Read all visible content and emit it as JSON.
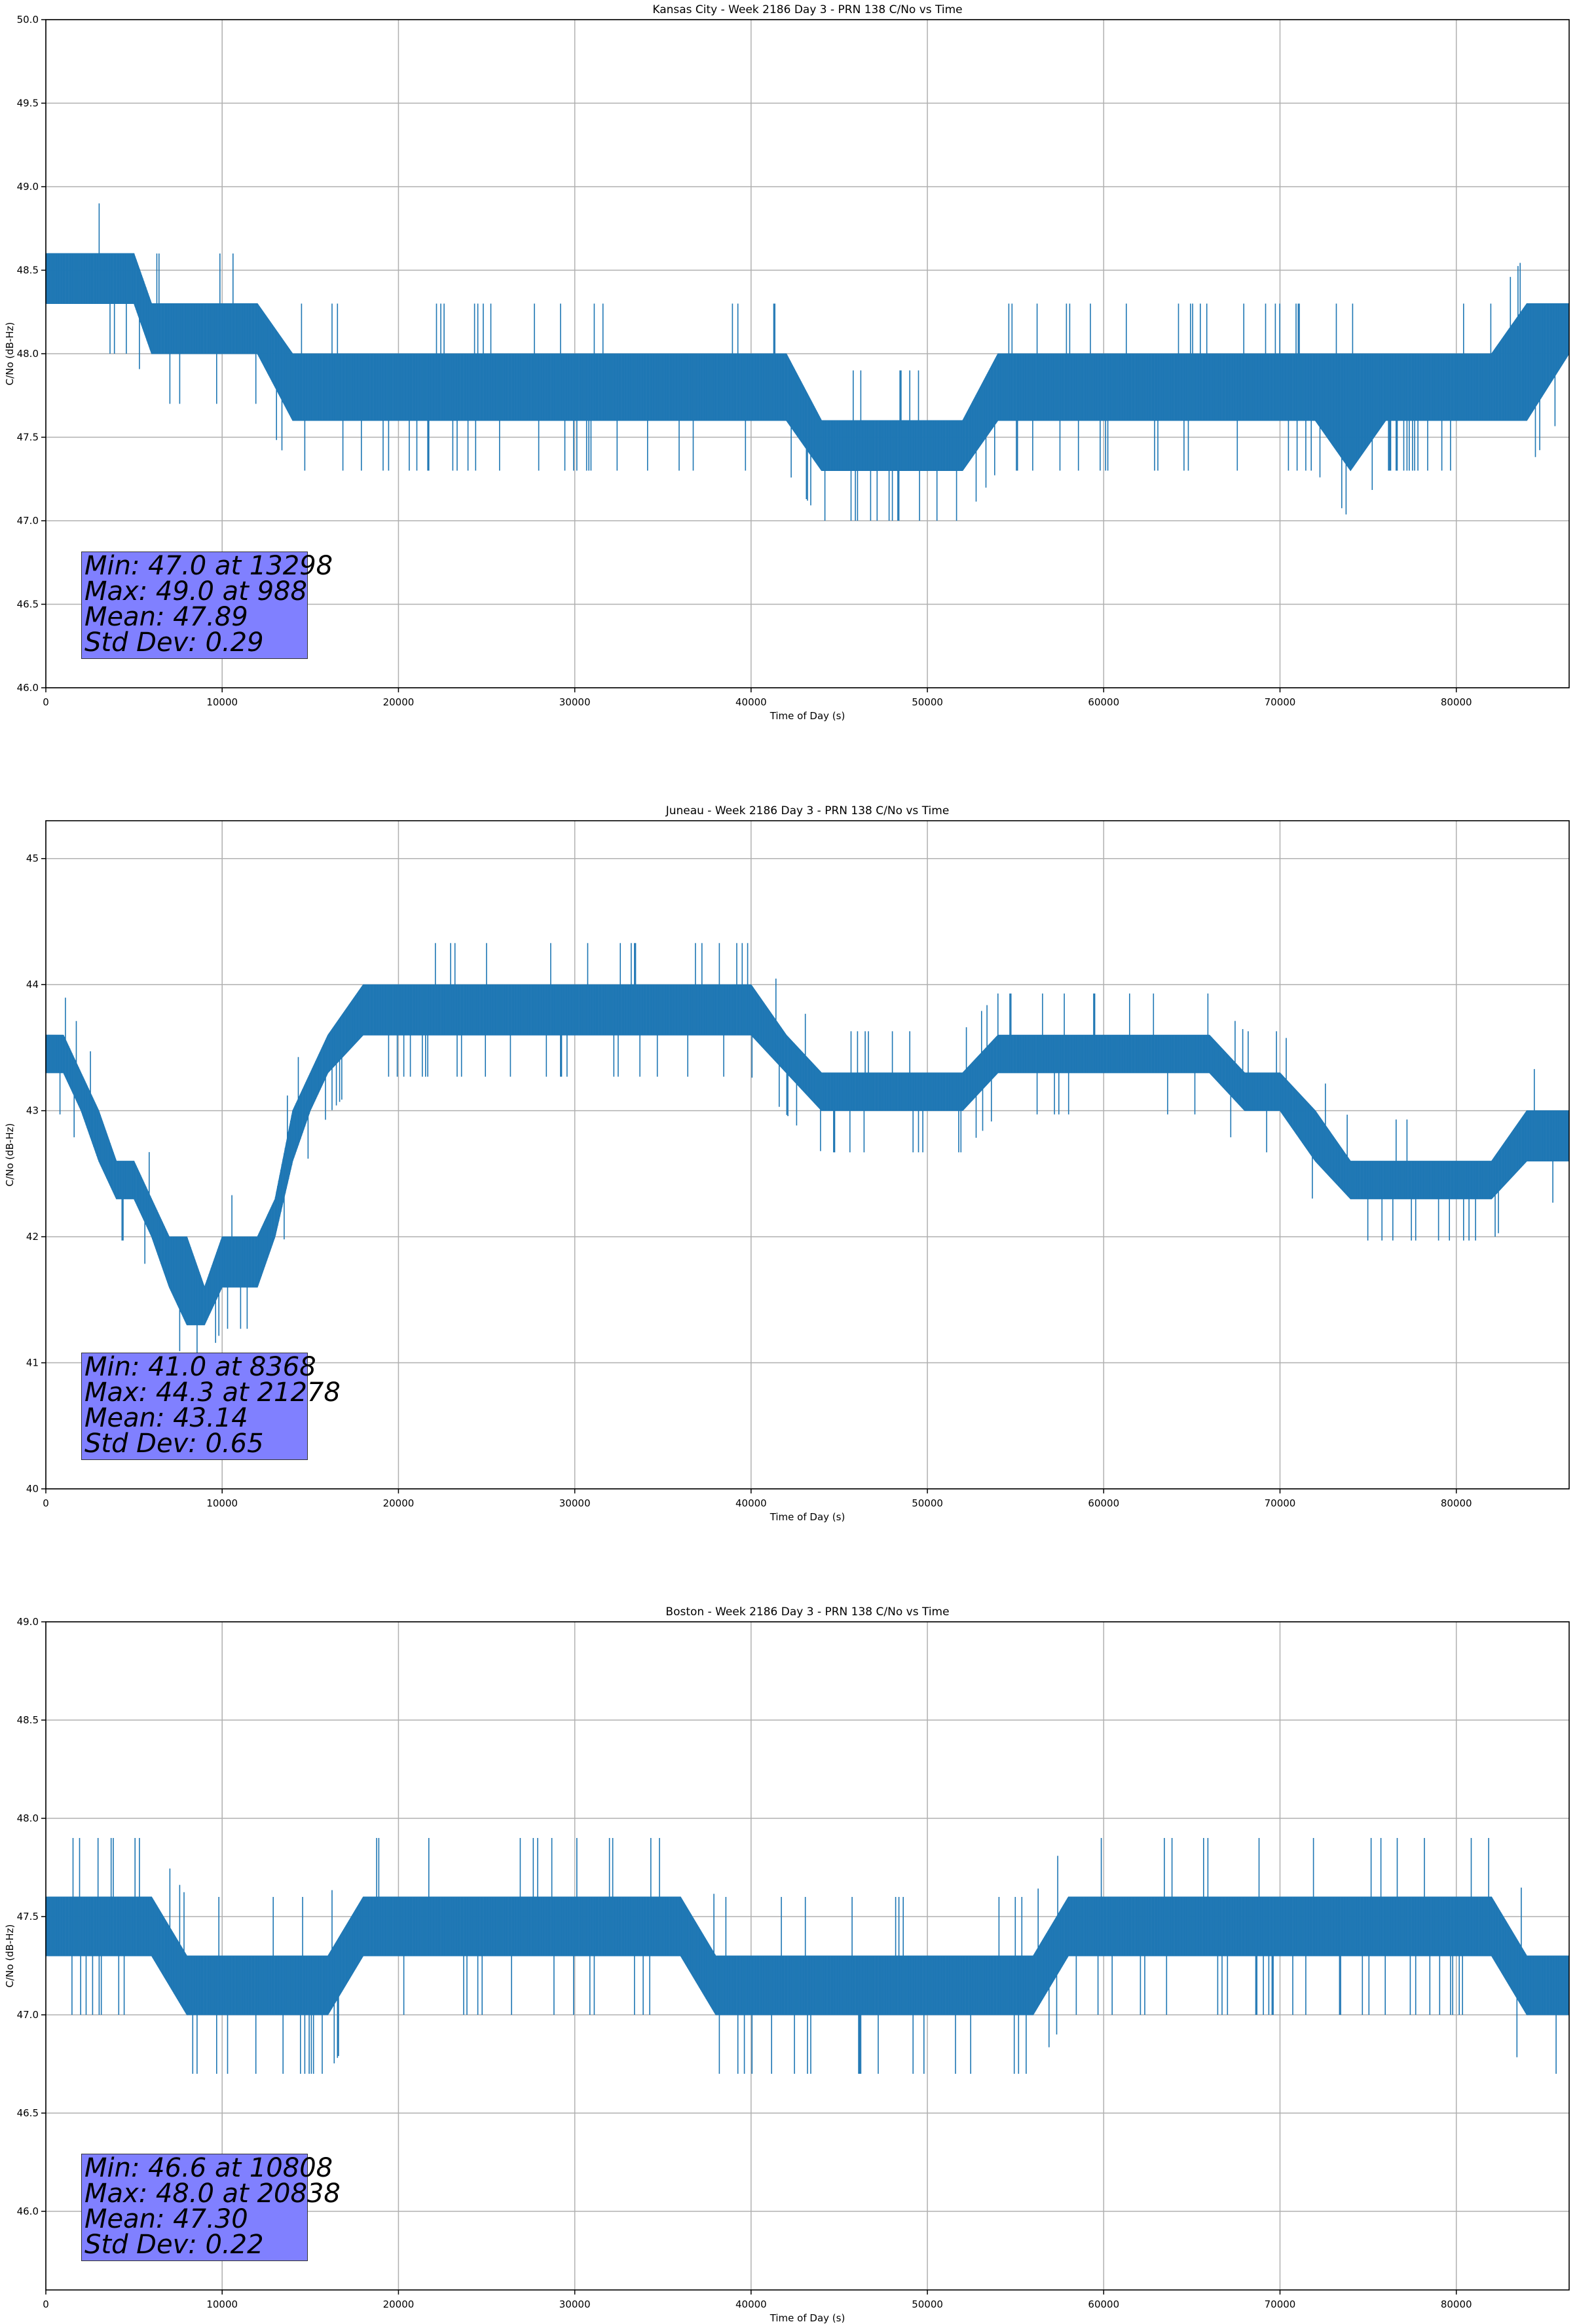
{
  "colors": {
    "line": "#1f77b4",
    "stats_box": "#8080ff",
    "grid": "#b0b0b0",
    "axis": "#000000"
  },
  "chart_data": [
    {
      "type": "line",
      "title": "Kansas City - Week 2186 Day 3 - PRN 138 C/No vs Time",
      "xlabel": "Time of Day (s)",
      "ylabel": "C/No (dB-Hz)",
      "xlim": [
        0,
        86400
      ],
      "ylim": [
        46.0,
        50.0
      ],
      "xticks": [
        0,
        10000,
        20000,
        30000,
        40000,
        50000,
        60000,
        70000,
        80000
      ],
      "yticks": [
        "46.0",
        "46.5",
        "47.0",
        "47.5",
        "48.0",
        "48.5",
        "49.0",
        "49.5",
        "50.0"
      ],
      "grid": true,
      "series": [
        {
          "x": [
            0,
            1000,
            2000,
            3000,
            4000,
            5000,
            6000,
            7000,
            8000,
            10000,
            12000,
            14000,
            16000,
            18000,
            20000,
            22000,
            24000,
            26000,
            28000,
            30000,
            32000,
            34000,
            36000,
            38000,
            40000,
            42000,
            44000,
            46000,
            48000,
            50000,
            52000,
            54000,
            56000,
            58000,
            60000,
            62000,
            64000,
            66000,
            68000,
            70000,
            72000,
            74000,
            76000,
            78000,
            80000,
            82000,
            84000,
            86400
          ],
          "y_low": [
            48.3,
            48.3,
            48.3,
            48.3,
            48.3,
            48.3,
            48.0,
            48.0,
            48.0,
            48.0,
            48.0,
            47.6,
            47.6,
            47.6,
            47.6,
            47.6,
            47.6,
            47.6,
            47.6,
            47.6,
            47.6,
            47.6,
            47.6,
            47.6,
            47.6,
            47.6,
            47.3,
            47.3,
            47.3,
            47.3,
            47.3,
            47.6,
            47.6,
            47.6,
            47.6,
            47.6,
            47.6,
            47.6,
            47.6,
            47.6,
            47.6,
            47.3,
            47.6,
            47.6,
            47.6,
            47.6,
            47.6,
            48.0
          ],
          "y_high": [
            48.6,
            48.6,
            48.6,
            48.6,
            48.6,
            48.6,
            48.3,
            48.3,
            48.3,
            48.3,
            48.3,
            48.0,
            48.0,
            48.0,
            48.0,
            48.0,
            48.0,
            48.0,
            48.0,
            48.0,
            48.0,
            48.0,
            48.0,
            48.0,
            48.0,
            48.0,
            47.6,
            47.6,
            47.6,
            47.6,
            47.6,
            48.0,
            48.0,
            48.0,
            48.0,
            48.0,
            48.0,
            48.0,
            48.0,
            48.0,
            48.0,
            48.0,
            48.0,
            48.0,
            48.0,
            48.0,
            48.3,
            48.3
          ]
        }
      ],
      "stats_lines": [
        "Min: 47.0 at 13298",
        "Max: 49.0 at 988",
        "Mean: 47.89",
        "Std Dev: 0.29"
      ]
    },
    {
      "type": "line",
      "title": "Juneau - Week 2186 Day 3 - PRN 138 C/No vs Time",
      "xlabel": "Time of Day (s)",
      "ylabel": "C/No (dB-Hz)",
      "xlim": [
        0,
        86400
      ],
      "ylim": [
        40.0,
        45.3
      ],
      "xticks": [
        0,
        10000,
        20000,
        30000,
        40000,
        50000,
        60000,
        70000,
        80000
      ],
      "yticks": [
        "40",
        "41",
        "42",
        "43",
        "44",
        "45"
      ],
      "grid": true,
      "series": [
        {
          "x": [
            0,
            1000,
            2000,
            3000,
            4000,
            5000,
            6000,
            7000,
            8000,
            9000,
            10000,
            11000,
            12000,
            13000,
            14000,
            15000,
            16000,
            18000,
            20000,
            22000,
            24000,
            26000,
            28000,
            30000,
            32000,
            34000,
            36000,
            38000,
            40000,
            42000,
            44000,
            46000,
            48000,
            50000,
            52000,
            54000,
            56000,
            58000,
            60000,
            62000,
            64000,
            66000,
            68000,
            70000,
            72000,
            74000,
            76000,
            78000,
            80000,
            82000,
            84000,
            86400
          ],
          "y_low": [
            43.3,
            43.3,
            43.0,
            42.6,
            42.3,
            42.3,
            42.0,
            41.6,
            41.3,
            41.3,
            41.6,
            41.6,
            41.6,
            42.0,
            42.6,
            43.0,
            43.3,
            43.6,
            43.6,
            43.6,
            43.6,
            43.6,
            43.6,
            43.6,
            43.6,
            43.6,
            43.6,
            43.6,
            43.6,
            43.3,
            43.0,
            43.0,
            43.0,
            43.0,
            43.0,
            43.3,
            43.3,
            43.3,
            43.3,
            43.3,
            43.3,
            43.3,
            43.0,
            43.0,
            42.6,
            42.3,
            42.3,
            42.3,
            42.3,
            42.3,
            42.6,
            42.6
          ],
          "y_high": [
            43.6,
            43.6,
            43.3,
            43.0,
            42.6,
            42.6,
            42.3,
            42.0,
            42.0,
            41.6,
            42.0,
            42.0,
            42.0,
            42.3,
            43.0,
            43.3,
            43.6,
            44.0,
            44.0,
            44.0,
            44.0,
            44.0,
            44.0,
            44.0,
            44.0,
            44.0,
            44.0,
            44.0,
            44.0,
            43.6,
            43.3,
            43.3,
            43.3,
            43.3,
            43.3,
            43.6,
            43.6,
            43.6,
            43.6,
            43.6,
            43.6,
            43.6,
            43.3,
            43.3,
            43.0,
            42.6,
            42.6,
            42.6,
            42.6,
            42.6,
            43.0,
            43.0
          ]
        }
      ],
      "stats_lines": [
        "Min: 41.0 at 8368",
        "Max: 44.3 at 21278",
        "Mean: 43.14",
        "Std Dev: 0.65"
      ]
    },
    {
      "type": "line",
      "title": "Boston - Week 2186 Day 3 - PRN 138 C/No vs Time",
      "xlabel": "Time of Day (s)",
      "ylabel": "C/No (dB-Hz)",
      "xlim": [
        0,
        86400
      ],
      "ylim": [
        45.6,
        49.0
      ],
      "xticks": [
        0,
        10000,
        20000,
        30000,
        40000,
        50000,
        60000,
        70000,
        80000
      ],
      "yticks": [
        "46.0",
        "46.5",
        "47.0",
        "47.5",
        "48.0",
        "48.5",
        "49.0"
      ],
      "grid": true,
      "series": [
        {
          "x": [
            0,
            2000,
            4000,
            6000,
            8000,
            10000,
            12000,
            14000,
            16000,
            18000,
            20000,
            22000,
            24000,
            26000,
            28000,
            30000,
            32000,
            34000,
            36000,
            38000,
            40000,
            42000,
            44000,
            46000,
            48000,
            50000,
            52000,
            54000,
            56000,
            58000,
            60000,
            62000,
            64000,
            66000,
            68000,
            70000,
            72000,
            74000,
            76000,
            78000,
            80000,
            82000,
            84000,
            86400
          ],
          "y_low": [
            47.3,
            47.3,
            47.3,
            47.3,
            47.0,
            47.0,
            47.0,
            47.0,
            47.0,
            47.3,
            47.3,
            47.3,
            47.3,
            47.3,
            47.3,
            47.3,
            47.3,
            47.3,
            47.3,
            47.0,
            47.0,
            47.0,
            47.0,
            47.0,
            47.0,
            47.0,
            47.0,
            47.0,
            47.0,
            47.3,
            47.3,
            47.3,
            47.3,
            47.3,
            47.3,
            47.3,
            47.3,
            47.3,
            47.3,
            47.3,
            47.3,
            47.3,
            47.0,
            47.0
          ],
          "y_high": [
            47.6,
            47.6,
            47.6,
            47.6,
            47.3,
            47.3,
            47.3,
            47.3,
            47.3,
            47.6,
            47.6,
            47.6,
            47.6,
            47.6,
            47.6,
            47.6,
            47.6,
            47.6,
            47.6,
            47.3,
            47.3,
            47.3,
            47.3,
            47.3,
            47.3,
            47.3,
            47.3,
            47.3,
            47.3,
            47.6,
            47.6,
            47.6,
            47.6,
            47.6,
            47.6,
            47.6,
            47.6,
            47.6,
            47.6,
            47.6,
            47.6,
            47.6,
            47.3,
            47.3
          ]
        }
      ],
      "stats_lines": [
        "Min: 46.6 at 10808",
        "Max: 48.0 at 20838",
        "Mean: 47.30",
        "Std Dev: 0.22"
      ]
    }
  ]
}
